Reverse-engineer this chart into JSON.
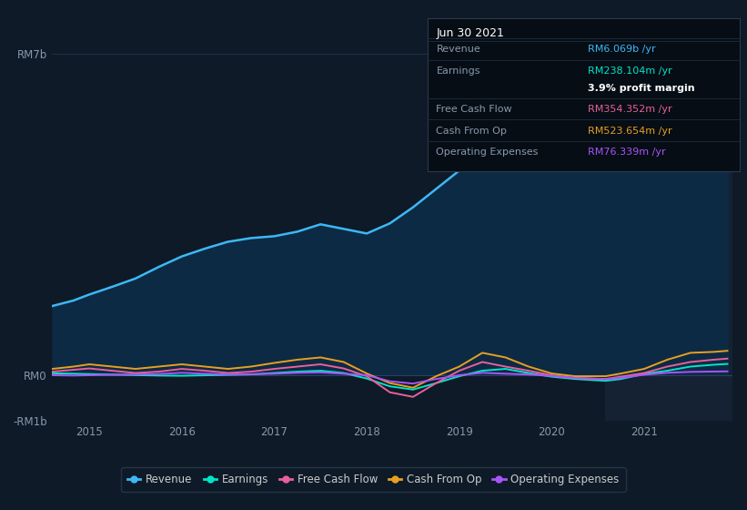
{
  "background_color": "#0e1a27",
  "plot_bg_color": "#0e1a27",
  "info_box": {
    "date": "Jun 30 2021",
    "revenue_label": "Revenue",
    "revenue_value": "RM6.069b /yr",
    "revenue_color": "#3db8f5",
    "earnings_label": "Earnings",
    "earnings_value": "RM238.104m /yr",
    "earnings_color": "#00e5c8",
    "profit_margin": "3.9% profit margin",
    "profit_margin_color": "#ffffff",
    "fcf_label": "Free Cash Flow",
    "fcf_value": "RM354.352m /yr",
    "fcf_color": "#e8609a",
    "cashop_label": "Cash From Op",
    "cashop_value": "RM523.654m /yr",
    "cashop_color": "#e8a020",
    "opex_label": "Operating Expenses",
    "opex_value": "RM76.339m /yr",
    "opex_color": "#a855f7"
  },
  "ylim": [
    -1000000000,
    7000000000
  ],
  "yticks": [
    -1000000000,
    0,
    7000000000
  ],
  "ytick_labels": [
    "-RM1b",
    "RM0",
    "RM7b"
  ],
  "xlim": [
    2014.6,
    2021.95
  ],
  "xticks": [
    2015,
    2016,
    2017,
    2018,
    2019,
    2020,
    2021
  ],
  "shaded_region_start": 2020.58,
  "revenue_color": "#3db8f5",
  "revenue_fill": "#0d2a45",
  "earnings_color": "#00e5c8",
  "fcf_color": "#e8609a",
  "cashop_color": "#e8a020",
  "opex_color": "#a855f7",
  "legend_labels": [
    "Revenue",
    "Earnings",
    "Free Cash Flow",
    "Cash From Op",
    "Operating Expenses"
  ],
  "legend_colors": [
    "#3db8f5",
    "#00e5c8",
    "#e8609a",
    "#e8a020",
    "#a855f7"
  ],
  "revenue_x": [
    2014.6,
    2014.83,
    2015.0,
    2015.25,
    2015.5,
    2015.75,
    2016.0,
    2016.25,
    2016.5,
    2016.75,
    2017.0,
    2017.25,
    2017.5,
    2017.75,
    2018.0,
    2018.25,
    2018.5,
    2018.75,
    2019.0,
    2019.25,
    2019.5,
    2019.75,
    2020.0,
    2020.25,
    2020.58,
    2020.75,
    2021.0,
    2021.25,
    2021.5,
    2021.75,
    2021.9
  ],
  "revenue_y": [
    1500000000.0,
    1620000000.0,
    1750000000.0,
    1920000000.0,
    2100000000.0,
    2350000000.0,
    2580000000.0,
    2750000000.0,
    2900000000.0,
    2980000000.0,
    3020000000.0,
    3120000000.0,
    3280000000.0,
    3180000000.0,
    3080000000.0,
    3300000000.0,
    3650000000.0,
    4050000000.0,
    4450000000.0,
    5050000000.0,
    5550000000.0,
    5950000000.0,
    6380000000.0,
    6550000000.0,
    6380000000.0,
    6120000000.0,
    5950000000.0,
    6080000000.0,
    6220000000.0,
    6100000000.0,
    6070000000.0
  ],
  "earnings_x": [
    2014.6,
    2014.83,
    2015.0,
    2015.25,
    2015.5,
    2015.75,
    2016.0,
    2016.25,
    2016.5,
    2016.75,
    2017.0,
    2017.25,
    2017.5,
    2017.75,
    2018.0,
    2018.25,
    2018.5,
    2018.75,
    2019.0,
    2019.25,
    2019.5,
    2019.75,
    2020.0,
    2020.25,
    2020.58,
    2020.75,
    2021.0,
    2021.25,
    2021.5,
    2021.75,
    2021.9
  ],
  "earnings_y": [
    35000000.0,
    25000000.0,
    15000000.0,
    5000000.0,
    -5000000.0,
    -15000000.0,
    -20000000.0,
    -10000000.0,
    0,
    10000000.0,
    40000000.0,
    70000000.0,
    90000000.0,
    40000000.0,
    -80000000.0,
    -250000000.0,
    -320000000.0,
    -180000000.0,
    -30000000.0,
    90000000.0,
    130000000.0,
    40000000.0,
    -40000000.0,
    -90000000.0,
    -130000000.0,
    -90000000.0,
    20000000.0,
    90000000.0,
    180000000.0,
    220000000.0,
    238000000.0
  ],
  "fcf_x": [
    2014.6,
    2014.83,
    2015.0,
    2015.25,
    2015.5,
    2015.75,
    2016.0,
    2016.25,
    2016.5,
    2016.75,
    2017.0,
    2017.25,
    2017.5,
    2017.75,
    2018.0,
    2018.25,
    2018.5,
    2018.75,
    2019.0,
    2019.25,
    2019.5,
    2019.75,
    2020.0,
    2020.25,
    2020.58,
    2020.75,
    2021.0,
    2021.25,
    2021.5,
    2021.75,
    2021.9
  ],
  "fcf_y": [
    70000000.0,
    110000000.0,
    140000000.0,
    90000000.0,
    40000000.0,
    70000000.0,
    130000000.0,
    90000000.0,
    40000000.0,
    70000000.0,
    130000000.0,
    180000000.0,
    230000000.0,
    140000000.0,
    -30000000.0,
    -380000000.0,
    -480000000.0,
    -180000000.0,
    90000000.0,
    280000000.0,
    180000000.0,
    90000000.0,
    -10000000.0,
    -70000000.0,
    -90000000.0,
    -40000000.0,
    40000000.0,
    180000000.0,
    280000000.0,
    330000000.0,
    354000000.0
  ],
  "cashop_x": [
    2014.6,
    2014.83,
    2015.0,
    2015.25,
    2015.5,
    2015.75,
    2016.0,
    2016.25,
    2016.5,
    2016.75,
    2017.0,
    2017.25,
    2017.5,
    2017.75,
    2018.0,
    2018.25,
    2018.5,
    2018.75,
    2019.0,
    2019.25,
    2019.5,
    2019.75,
    2020.0,
    2020.25,
    2020.58,
    2020.75,
    2021.0,
    2021.25,
    2021.5,
    2021.75,
    2021.9
  ],
  "cashop_y": [
    130000000.0,
    180000000.0,
    230000000.0,
    180000000.0,
    130000000.0,
    180000000.0,
    230000000.0,
    180000000.0,
    130000000.0,
    180000000.0,
    260000000.0,
    330000000.0,
    380000000.0,
    280000000.0,
    30000000.0,
    -180000000.0,
    -280000000.0,
    -30000000.0,
    180000000.0,
    480000000.0,
    380000000.0,
    180000000.0,
    30000000.0,
    -30000000.0,
    -30000000.0,
    30000000.0,
    130000000.0,
    330000000.0,
    480000000.0,
    500000000.0,
    524000000.0
  ],
  "opex_x": [
    2014.6,
    2014.83,
    2015.0,
    2015.25,
    2015.5,
    2015.75,
    2016.0,
    2016.25,
    2016.5,
    2016.75,
    2017.0,
    2017.25,
    2017.5,
    2017.75,
    2018.0,
    2018.25,
    2018.5,
    2018.75,
    2019.0,
    2019.25,
    2019.5,
    2019.75,
    2020.0,
    2020.25,
    2020.58,
    2020.75,
    2021.0,
    2021.25,
    2021.5,
    2021.75,
    2021.9
  ],
  "opex_y": [
    -8000000.0,
    -15000000.0,
    -8000000.0,
    2000000.0,
    10000000.0,
    18000000.0,
    45000000.0,
    25000000.0,
    8000000.0,
    15000000.0,
    25000000.0,
    45000000.0,
    55000000.0,
    25000000.0,
    -8000000.0,
    -140000000.0,
    -190000000.0,
    -90000000.0,
    -8000000.0,
    45000000.0,
    25000000.0,
    8000000.0,
    -25000000.0,
    -65000000.0,
    -95000000.0,
    -65000000.0,
    2000000.0,
    45000000.0,
    65000000.0,
    72000000.0,
    76000000.0
  ]
}
